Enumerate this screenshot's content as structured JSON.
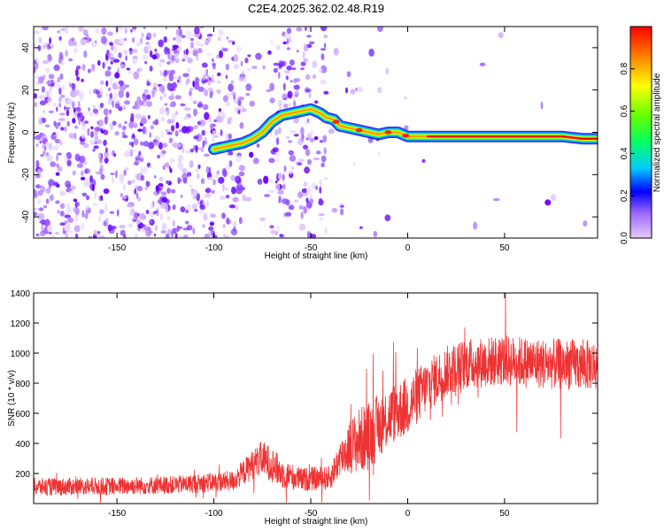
{
  "title": "C2E4.2025.362.02.48.R19",
  "chart_data": [
    {
      "type": "heatmap",
      "name": "spectrogram",
      "xlabel": "Height of straight line (km)",
      "ylabel": "Frequency (Hz)",
      "xlim": [
        -193,
        98
      ],
      "ylim": [
        -50,
        50
      ],
      "xticks": [
        -150,
        -100,
        -50,
        0,
        50
      ],
      "yticks": [
        -40,
        -20,
        0,
        20,
        40
      ],
      "trace": {
        "x": [
          -100,
          -95,
          -90,
          -85,
          -80,
          -75,
          -70,
          -65,
          -60,
          -55,
          -50,
          -45,
          -42,
          -38,
          -35,
          -30,
          -25,
          -20,
          -15,
          -10,
          -5,
          0,
          5,
          10,
          20,
          40,
          60,
          80,
          90,
          98
        ],
        "y": [
          -8,
          -7,
          -6,
          -5,
          -3,
          0,
          5,
          8,
          9,
          10,
          11,
          9,
          7,
          6,
          3,
          2,
          1,
          0,
          -1,
          0,
          0,
          -2,
          -2,
          -2,
          -2,
          -2,
          -2,
          -2,
          -3,
          -3
        ]
      },
      "colorbar": {
        "label": "Normalized spectral amplitude",
        "ticks": [
          0.0,
          0.2,
          0.4,
          0.6,
          0.8
        ],
        "range": [
          0,
          1
        ]
      }
    },
    {
      "type": "line",
      "name": "snr",
      "color": "#ee3333",
      "xlabel": "Height of straight line (km)",
      "ylabel": "SNR (10 * v/v)",
      "xlim": [
        -193,
        98
      ],
      "ylim": [
        0,
        1400
      ],
      "xticks": [
        -150,
        -100,
        -50,
        0,
        50
      ],
      "yticks": [
        200,
        400,
        600,
        800,
        1000,
        1200,
        1400
      ],
      "envelope": {
        "x": [
          -193,
          -150,
          -120,
          -90,
          -80,
          -75,
          -70,
          -65,
          -55,
          -40,
          -35,
          -30,
          -25,
          -20,
          -10,
          0,
          10,
          20,
          30,
          50,
          70,
          98
        ],
        "mean": [
          110,
          115,
          125,
          150,
          260,
          300,
          260,
          200,
          160,
          170,
          300,
          380,
          420,
          450,
          580,
          650,
          780,
          880,
          930,
          950,
          930,
          920
        ],
        "spread": [
          60,
          60,
          60,
          70,
          100,
          120,
          120,
          100,
          80,
          80,
          120,
          180,
          220,
          230,
          200,
          200,
          180,
          170,
          170,
          170,
          170,
          170
        ]
      }
    }
  ]
}
